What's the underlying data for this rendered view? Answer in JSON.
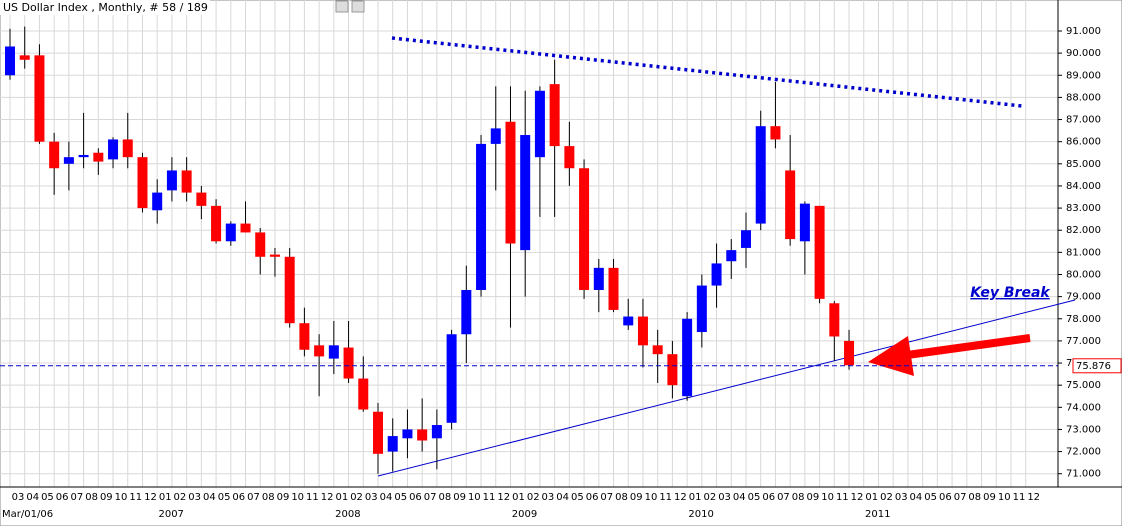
{
  "chart_data": {
    "type": "candlestick",
    "title": "US Dollar Index , Monthly, # 58 / 189",
    "categories": [
      "03",
      "04",
      "05",
      "06",
      "07",
      "08",
      "09",
      "10",
      "11",
      "12",
      "01",
      "02",
      "03",
      "04",
      "05",
      "06",
      "07",
      "08",
      "09",
      "10",
      "11",
      "12",
      "01",
      "02",
      "03",
      "04",
      "05",
      "06",
      "07",
      "08",
      "09",
      "10",
      "11",
      "12",
      "01",
      "02",
      "03",
      "04",
      "05",
      "06",
      "07",
      "08",
      "09",
      "10",
      "11",
      "12",
      "01",
      "02",
      "03",
      "04",
      "05",
      "06",
      "07",
      "08",
      "09",
      "10",
      "11",
      "12",
      "01",
      "02",
      "03",
      "04",
      "05",
      "06",
      "07",
      "08",
      "09",
      "10",
      "11",
      "12"
    ],
    "year_labels": [
      "Mar/01/06",
      null,
      null,
      null,
      null,
      null,
      null,
      null,
      null,
      null,
      "2007",
      null,
      null,
      null,
      null,
      null,
      null,
      null,
      null,
      null,
      null,
      null,
      "2008",
      null,
      null,
      null,
      null,
      null,
      null,
      null,
      null,
      null,
      null,
      null,
      "2009",
      null,
      null,
      null,
      null,
      null,
      null,
      null,
      null,
      null,
      null,
      null,
      "2010",
      null,
      null,
      null,
      null,
      null,
      null,
      null,
      null,
      null,
      null,
      null,
      "2011",
      null,
      null,
      null,
      null,
      null,
      null,
      null,
      null,
      null,
      null,
      null
    ],
    "open": [
      89.0,
      89.9,
      89.9,
      86.0,
      85.0,
      85.3,
      85.5,
      85.2,
      86.1,
      85.3,
      82.9,
      83.8,
      84.7,
      83.7,
      83.1,
      81.5,
      82.3,
      81.9,
      80.9,
      80.8,
      77.8,
      76.8,
      76.2,
      76.7,
      75.3,
      73.8,
      72.0,
      72.6,
      73.0,
      72.6,
      73.3,
      77.3,
      79.3,
      85.9,
      86.9,
      81.1,
      85.3,
      88.6,
      85.8,
      84.8,
      79.3,
      80.3,
      77.7,
      78.1,
      76.8,
      76.4,
      74.5,
      77.4,
      79.5,
      80.6,
      81.2,
      82.3,
      86.7,
      84.7,
      81.5,
      83.1,
      78.7,
      77.0,
      null,
      null,
      null,
      null,
      null,
      null,
      null,
      null,
      null,
      null,
      null,
      null
    ],
    "high": [
      91.1,
      91.2,
      90.4,
      86.4,
      86.0,
      87.3,
      85.7,
      86.2,
      87.3,
      85.5,
      84.3,
      85.3,
      85.3,
      84.0,
      83.4,
      82.4,
      83.3,
      82.1,
      81.2,
      81.2,
      78.5,
      77.3,
      77.9,
      77.9,
      76.3,
      74.2,
      73.5,
      73.9,
      74.4,
      73.9,
      77.5,
      80.4,
      86.3,
      88.5,
      88.5,
      88.3,
      88.5,
      89.7,
      86.9,
      85.2,
      80.7,
      80.7,
      78.9,
      78.9,
      77.5,
      77.0,
      78.3,
      80.0,
      81.4,
      81.6,
      82.8,
      87.4,
      88.7,
      86.3,
      83.3,
      83.1,
      78.8,
      77.5,
      null,
      null,
      null,
      null,
      null,
      null,
      null,
      null,
      null,
      null,
      null,
      null
    ],
    "low": [
      88.8,
      89.3,
      85.9,
      83.6,
      83.8,
      84.8,
      84.5,
      84.8,
      84.8,
      82.8,
      82.3,
      83.3,
      83.3,
      82.5,
      81.4,
      81.3,
      81.9,
      80.0,
      79.9,
      77.6,
      76.3,
      74.5,
      75.5,
      75.1,
      73.8,
      71.0,
      71.1,
      71.7,
      72.0,
      71.2,
      73.0,
      76.0,
      79.0,
      83.8,
      77.6,
      79.0,
      82.6,
      82.6,
      84.0,
      78.9,
      78.3,
      78.3,
      77.5,
      75.8,
      75.1,
      74.4,
      74.3,
      76.7,
      78.5,
      79.8,
      80.3,
      82.0,
      85.7,
      81.3,
      80.0,
      78.7,
      76.1,
      75.7,
      null,
      null,
      null,
      null,
      null,
      null,
      null,
      null,
      null,
      null,
      null,
      null
    ],
    "close": [
      90.3,
      89.7,
      86.0,
      84.8,
      85.3,
      85.4,
      85.1,
      86.1,
      85.3,
      83.0,
      83.7,
      84.7,
      83.7,
      83.1,
      81.5,
      82.3,
      81.9,
      80.8,
      80.8,
      77.8,
      76.6,
      76.3,
      76.8,
      75.3,
      73.9,
      71.9,
      72.7,
      73.0,
      72.5,
      73.2,
      77.3,
      79.3,
      85.9,
      86.6,
      81.4,
      86.3,
      88.3,
      85.8,
      84.8,
      79.3,
      80.3,
      78.4,
      78.1,
      76.8,
      76.4,
      75.0,
      78.0,
      79.5,
      80.5,
      81.1,
      82.0,
      86.7,
      86.1,
      81.6,
      83.2,
      78.9,
      77.2,
      75.9,
      null,
      null,
      null,
      null,
      null,
      null,
      null,
      null,
      null,
      null,
      null,
      null
    ],
    "up_color": "#0000ff",
    "down_color": "#ff0000",
    "last_price": 75.876,
    "annotation": "Key Break",
    "ylim": [
      70.4,
      92.4
    ],
    "yticks": [
      {
        "value": 71,
        "label": "71.000"
      },
      {
        "value": 72,
        "label": "72.000"
      },
      {
        "value": 73,
        "label": "73.000"
      },
      {
        "value": 74,
        "label": "74.000"
      },
      {
        "value": 75,
        "label": "75.000"
      },
      {
        "value": 76,
        "label": "76.000"
      },
      {
        "value": 77,
        "label": "77.000"
      },
      {
        "value": 78,
        "label": "78.000"
      },
      {
        "value": 79,
        "label": "79.000"
      },
      {
        "value": 80,
        "label": "80.000"
      },
      {
        "value": 81,
        "label": "81.000"
      },
      {
        "value": 82,
        "label": "82.000"
      },
      {
        "value": 83,
        "label": "83.000"
      },
      {
        "value": 84,
        "label": "84.000"
      },
      {
        "value": 85,
        "label": "85.000"
      },
      {
        "value": 86,
        "label": "86.000"
      },
      {
        "value": 87,
        "label": "87.000"
      },
      {
        "value": 88,
        "label": "88.000"
      },
      {
        "value": 89,
        "label": "89.000"
      },
      {
        "value": 90,
        "label": "90.000"
      },
      {
        "value": 91,
        "label": "91.000"
      }
    ],
    "grid": true
  }
}
